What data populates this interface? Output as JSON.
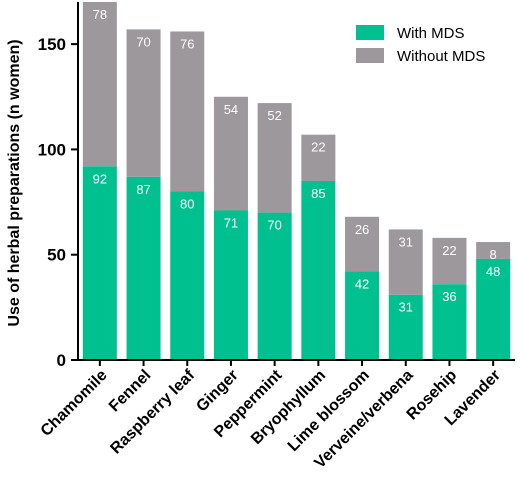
{
  "chart_data": {
    "type": "bar",
    "stacked": true,
    "categories": [
      "Chamomile",
      "Fennel",
      "Raspberry leaf",
      "Ginger",
      "Peppermint",
      "Bryophyllum",
      "Lime blossom",
      "Verveine/verbena",
      "Rosehip",
      "Lavender"
    ],
    "series": [
      {
        "name": "With MDS",
        "color": "#00c08f",
        "values": [
          92,
          87,
          80,
          71,
          70,
          85,
          42,
          31,
          36,
          48
        ]
      },
      {
        "name": "Without MDS",
        "color": "#9c989c",
        "values": [
          78,
          70,
          76,
          54,
          52,
          22,
          26,
          31,
          22,
          8
        ]
      }
    ],
    "ylabel": "Use of herbal preparations (n women)",
    "xlabel": "",
    "ylim": [
      0,
      170
    ],
    "yticks": [
      0,
      50,
      100,
      150
    ],
    "legend_position": "top-right",
    "grid": false
  }
}
